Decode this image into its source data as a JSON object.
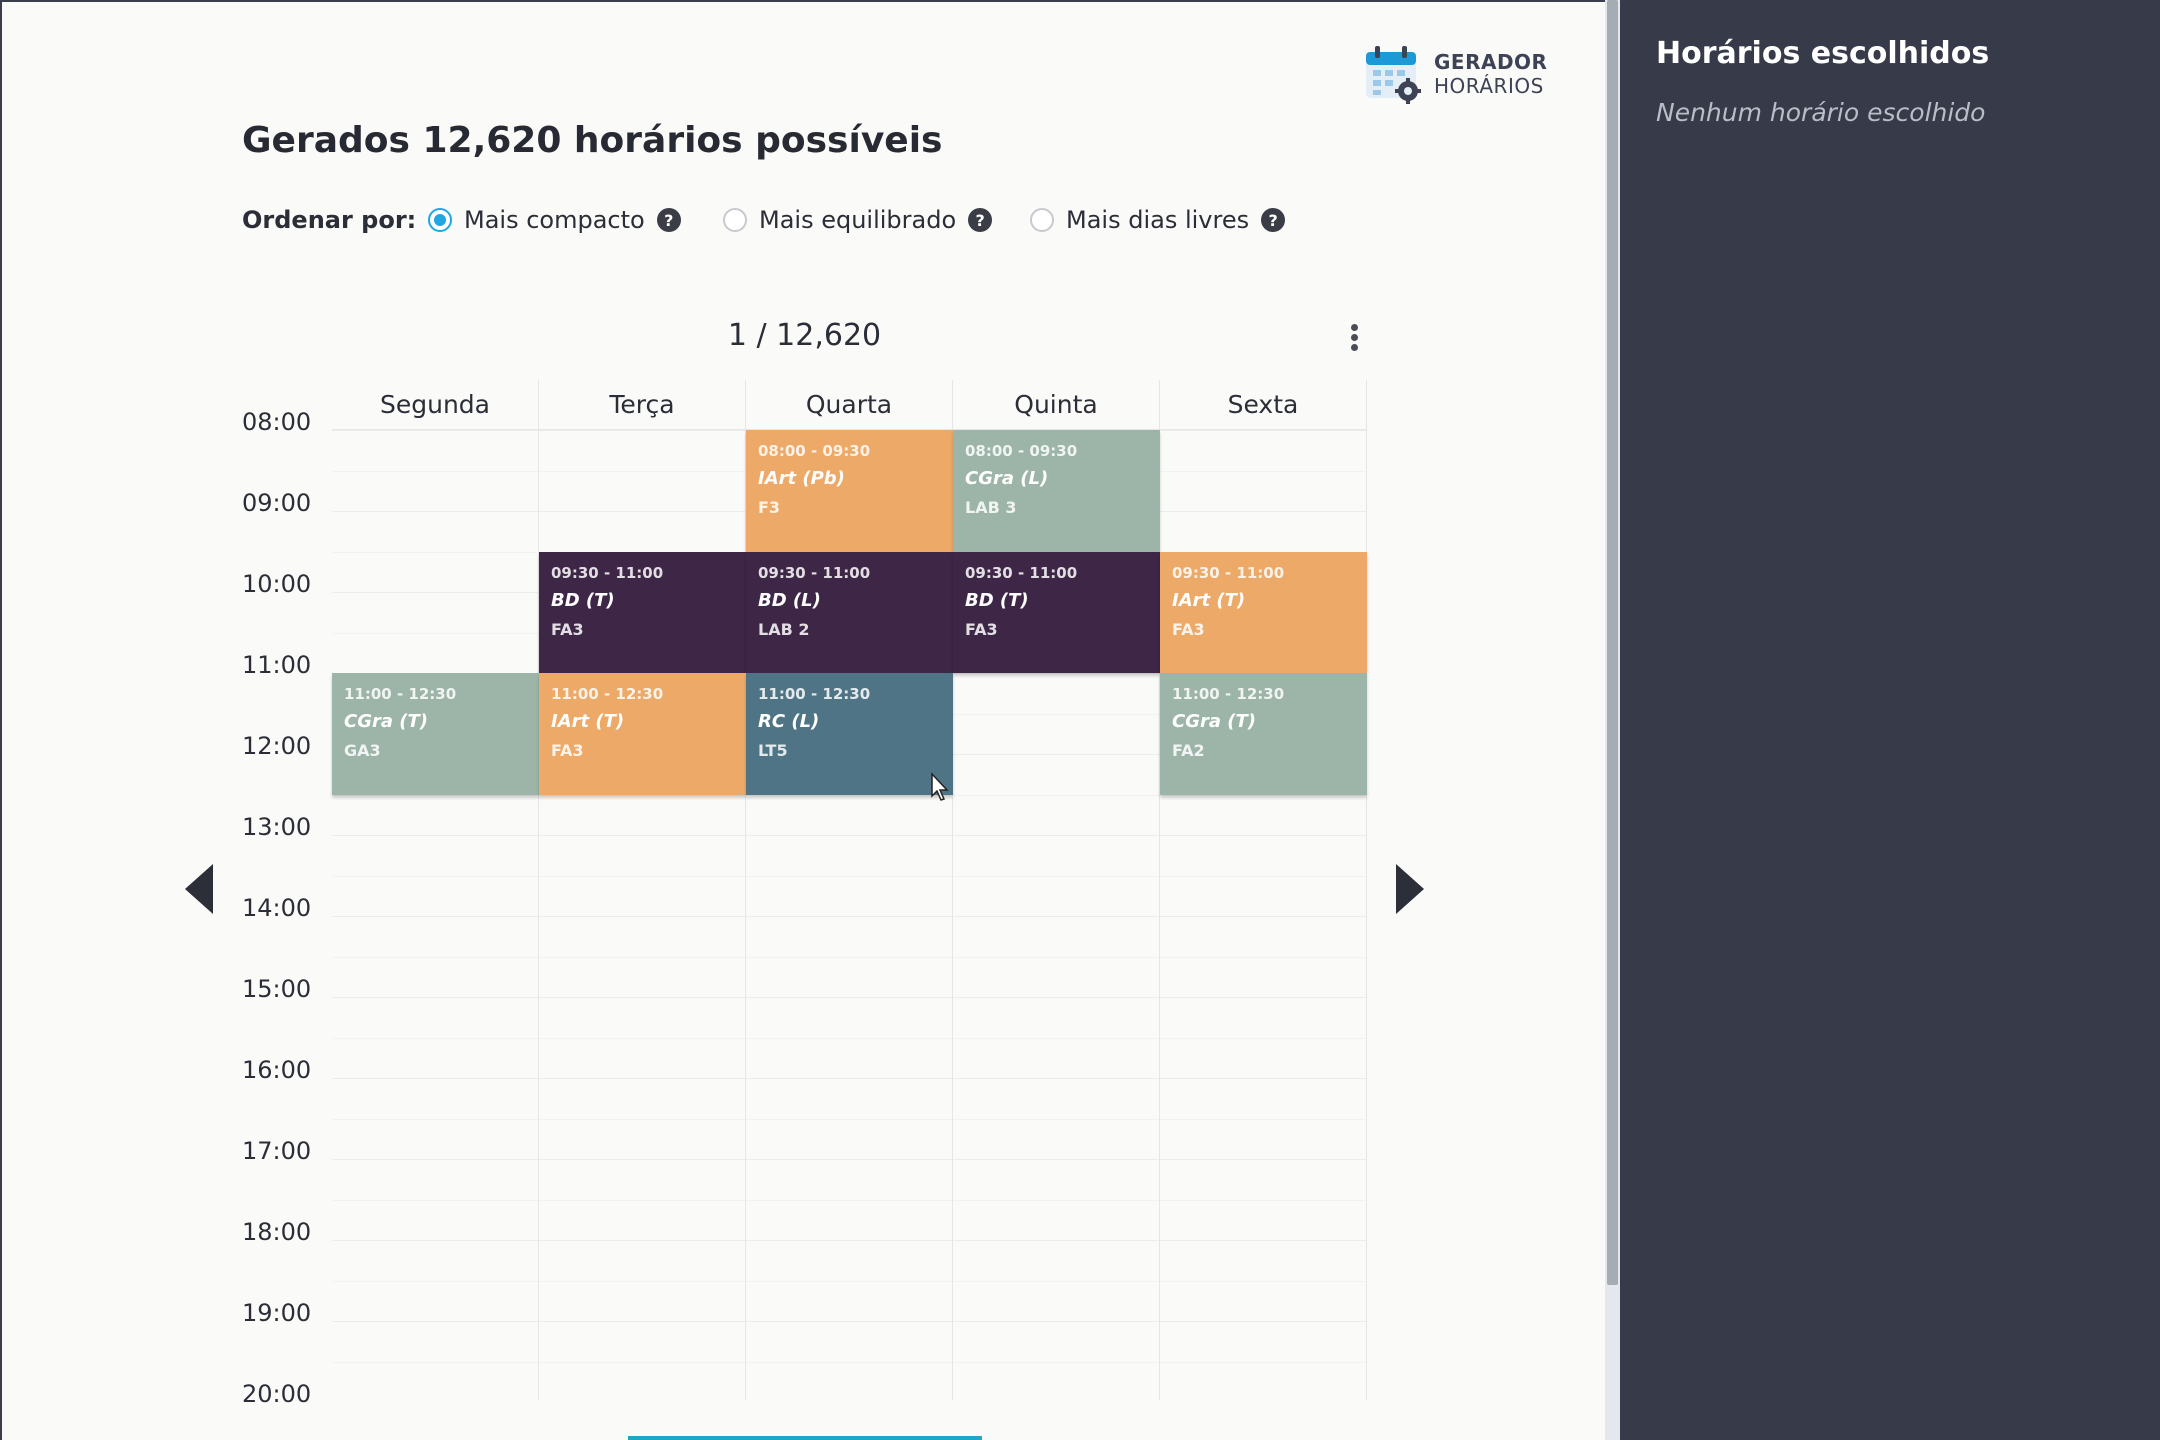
{
  "logo": {
    "line1": "GERADOR",
    "line2": "HORÁRIOS"
  },
  "title": "Gerados 12,620 horários possíveis",
  "sort": {
    "label": "Ordenar por:",
    "options": [
      {
        "label": "Mais compacto",
        "selected": true
      },
      {
        "label": "Mais equilibrado",
        "selected": false
      },
      {
        "label": "Mais dias livres",
        "selected": false
      }
    ]
  },
  "counter": "1 / 12,620",
  "days": [
    "Segunda",
    "Terça",
    "Quarta",
    "Quinta",
    "Sexta"
  ],
  "hours": [
    "08:00",
    "09:00",
    "10:00",
    "11:00",
    "12:00",
    "13:00",
    "14:00",
    "15:00",
    "16:00",
    "17:00",
    "18:00",
    "19:00",
    "20:00"
  ],
  "colors": {
    "orange": "#eda967",
    "sage": "#9cb5a8",
    "purple": "#3e2647",
    "teal": "#4e7485",
    "accent": "#1ea7e1",
    "sidebar_bg": "#373a48"
  },
  "events": [
    {
      "day": 2,
      "start": "08:00",
      "end": "09:30",
      "time": "08:00 - 09:30",
      "name": "IArt (Pb)",
      "room": "F3",
      "color": "orange"
    },
    {
      "day": 3,
      "start": "08:00",
      "end": "09:30",
      "time": "08:00 - 09:30",
      "name": "CGra (L)",
      "room": "LAB 3",
      "color": "sage"
    },
    {
      "day": 1,
      "start": "09:30",
      "end": "11:00",
      "time": "09:30 - 11:00",
      "name": "BD (T)",
      "room": "FA3",
      "color": "purple"
    },
    {
      "day": 2,
      "start": "09:30",
      "end": "11:00",
      "time": "09:30 - 11:00",
      "name": "BD (L)",
      "room": "LAB 2",
      "color": "purple"
    },
    {
      "day": 3,
      "start": "09:30",
      "end": "11:00",
      "time": "09:30 - 11:00",
      "name": "BD (T)",
      "room": "FA3",
      "color": "purple"
    },
    {
      "day": 4,
      "start": "09:30",
      "end": "11:00",
      "time": "09:30 - 11:00",
      "name": "IArt (T)",
      "room": "FA3",
      "color": "orange"
    },
    {
      "day": 0,
      "start": "11:00",
      "end": "12:30",
      "time": "11:00 - 12:30",
      "name": "CGra (T)",
      "room": "GA3",
      "color": "sage"
    },
    {
      "day": 1,
      "start": "11:00",
      "end": "12:30",
      "time": "11:00 - 12:30",
      "name": "IArt (T)",
      "room": "FA3",
      "color": "orange"
    },
    {
      "day": 2,
      "start": "11:00",
      "end": "12:30",
      "time": "11:00 - 12:30",
      "name": "RC (L)",
      "room": "LT5",
      "color": "teal"
    },
    {
      "day": 4,
      "start": "11:00",
      "end": "12:30",
      "time": "11:00 - 12:30",
      "name": "CGra (T)",
      "room": "FA2",
      "color": "sage"
    }
  ],
  "sidebar": {
    "title": "Horários escolhidos",
    "empty": "Nenhum horário escolhido"
  }
}
